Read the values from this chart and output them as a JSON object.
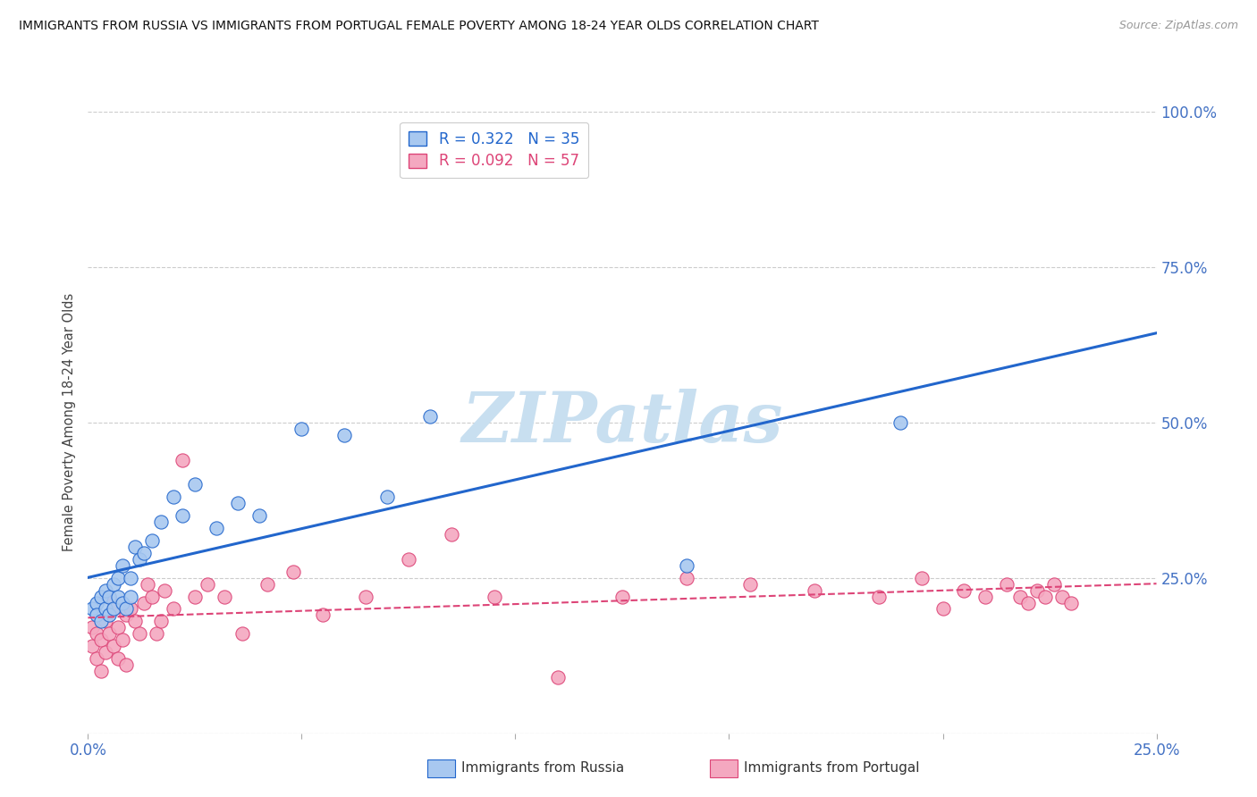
{
  "title": "IMMIGRANTS FROM RUSSIA VS IMMIGRANTS FROM PORTUGAL FEMALE POVERTY AMONG 18-24 YEAR OLDS CORRELATION CHART",
  "source": "Source: ZipAtlas.com",
  "ylabel": "Female Poverty Among 18-24 Year Olds",
  "xlim": [
    0.0,
    0.25
  ],
  "ylim": [
    0.0,
    1.0
  ],
  "russia_color": "#A8C8F0",
  "portugal_color": "#F4A8C0",
  "russia_R": 0.322,
  "russia_N": 35,
  "portugal_R": 0.092,
  "portugal_N": 57,
  "russia_line_color": "#2266CC",
  "portugal_line_color": "#DD4477",
  "tick_color": "#4472C4",
  "watermark_color": "#C8DFF0",
  "russia_x": [
    0.001,
    0.002,
    0.002,
    0.003,
    0.003,
    0.004,
    0.004,
    0.005,
    0.005,
    0.006,
    0.006,
    0.007,
    0.007,
    0.008,
    0.008,
    0.009,
    0.01,
    0.01,
    0.011,
    0.012,
    0.013,
    0.015,
    0.017,
    0.02,
    0.022,
    0.025,
    0.03,
    0.035,
    0.04,
    0.05,
    0.06,
    0.07,
    0.08,
    0.14,
    0.19
  ],
  "russia_y": [
    0.2,
    0.21,
    0.19,
    0.22,
    0.18,
    0.23,
    0.2,
    0.22,
    0.19,
    0.24,
    0.2,
    0.22,
    0.25,
    0.21,
    0.27,
    0.2,
    0.25,
    0.22,
    0.3,
    0.28,
    0.29,
    0.31,
    0.34,
    0.38,
    0.35,
    0.4,
    0.33,
    0.37,
    0.35,
    0.49,
    0.48,
    0.38,
    0.51,
    0.27,
    0.5
  ],
  "portugal_x": [
    0.001,
    0.001,
    0.002,
    0.002,
    0.003,
    0.003,
    0.004,
    0.004,
    0.005,
    0.005,
    0.006,
    0.006,
    0.007,
    0.007,
    0.008,
    0.009,
    0.009,
    0.01,
    0.011,
    0.012,
    0.013,
    0.014,
    0.015,
    0.016,
    0.017,
    0.018,
    0.02,
    0.022,
    0.025,
    0.028,
    0.032,
    0.036,
    0.042,
    0.048,
    0.055,
    0.065,
    0.075,
    0.085,
    0.095,
    0.11,
    0.125,
    0.14,
    0.155,
    0.17,
    0.185,
    0.195,
    0.2,
    0.205,
    0.21,
    0.215,
    0.218,
    0.22,
    0.222,
    0.224,
    0.226,
    0.228,
    0.23
  ],
  "portugal_y": [
    0.14,
    0.17,
    0.12,
    0.16,
    0.1,
    0.15,
    0.18,
    0.13,
    0.22,
    0.16,
    0.14,
    0.2,
    0.12,
    0.17,
    0.15,
    0.19,
    0.11,
    0.2,
    0.18,
    0.16,
    0.21,
    0.24,
    0.22,
    0.16,
    0.18,
    0.23,
    0.2,
    0.44,
    0.22,
    0.24,
    0.22,
    0.16,
    0.24,
    0.26,
    0.19,
    0.22,
    0.28,
    0.32,
    0.22,
    0.09,
    0.22,
    0.25,
    0.24,
    0.23,
    0.22,
    0.25,
    0.2,
    0.23,
    0.22,
    0.24,
    0.22,
    0.21,
    0.23,
    0.22,
    0.24,
    0.22,
    0.21
  ]
}
